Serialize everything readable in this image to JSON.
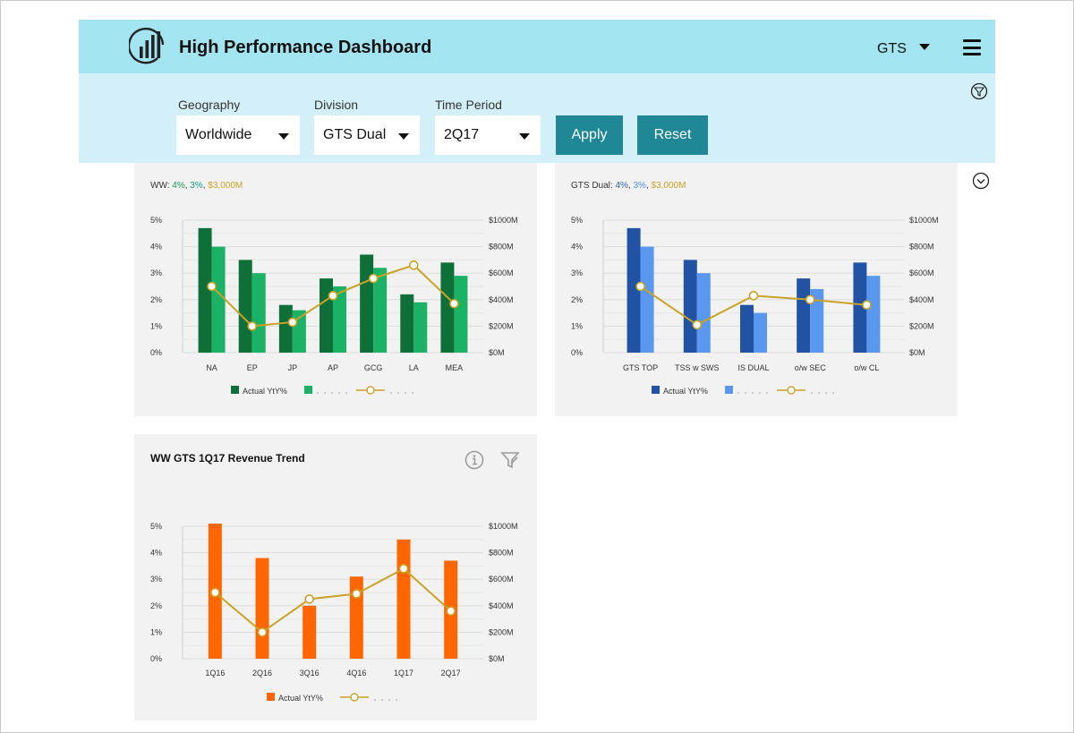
{
  "header": {
    "title": "High Performance Dashboard",
    "user_select": "GTS",
    "logo_icon": "bar-chart-logo-icon",
    "menu_icon": "hamburger-menu-icon"
  },
  "filters": {
    "geography": {
      "label": "Geography",
      "value": "Worldwide"
    },
    "division": {
      "label": "Division",
      "value": "GTS Dual"
    },
    "time_period": {
      "label": "Time Period",
      "value": "2Q17"
    },
    "apply_label": "Apply",
    "reset_label": "Reset",
    "filter_icon": "filter-icon"
  },
  "panels": {
    "ww": {
      "prefix": "WW: ",
      "v1": "4%",
      "sep1": ", ",
      "v2": "3%",
      "sep2": ", ",
      "v3": "$3,000M"
    },
    "dual": {
      "prefix": "GTS Dual: ",
      "v1": "4%",
      "sep1": ", ",
      "v2": "3%",
      "sep2": ", ",
      "v3": "$3,000M"
    },
    "trend": {
      "title": "WW GTS 1Q17 Revenue Trend"
    }
  },
  "colors": {
    "green_dark": "#0e7038",
    "green_light": "#1cb265",
    "blue_dark": "#2152a3",
    "blue_light": "#5a98f0",
    "orange": "#ff6600",
    "gold": "#c9a227"
  },
  "chart_data": [
    {
      "type": "bar",
      "categories": [
        "NA",
        "EP",
        "JP",
        "AP",
        "GCG",
        "LA",
        "MEA"
      ],
      "series": [
        {
          "name": "Actual YtY%",
          "kind": "bar",
          "axis": "left",
          "values": [
            4.7,
            3.5,
            1.8,
            2.8,
            3.7,
            2.2,
            3.4
          ]
        },
        {
          "kind": "bar",
          "axis": "left",
          "values": [
            4.0,
            3.0,
            1.6,
            2.5,
            3.2,
            1.9,
            2.9
          ]
        },
        {
          "kind": "line",
          "axis": "right",
          "values": [
            500,
            200,
            230,
            430,
            560,
            660,
            370
          ]
        }
      ],
      "yticks_left": [
        "5%",
        "4%",
        "3%",
        "2%",
        "1%",
        "0%"
      ],
      "yticks_right": [
        "$1000M",
        "$800M",
        "$600M",
        "$400M",
        "$200M",
        "$0M"
      ],
      "ylim_left": [
        0,
        5
      ],
      "ylim_right": [
        0,
        1000
      ],
      "legend": {
        "placement": "bottom",
        "entries": [
          "Actual YtY%"
        ]
      }
    },
    {
      "type": "bar",
      "categories": [
        "GTS TOP",
        "TSS w SWS",
        "IS DUAL",
        "o/w SEC",
        "o/w CL"
      ],
      "series": [
        {
          "name": "Actual YtY%",
          "kind": "bar",
          "axis": "left",
          "values": [
            4.7,
            3.5,
            1.8,
            2.8,
            3.4
          ]
        },
        {
          "kind": "bar",
          "axis": "left",
          "values": [
            4.0,
            3.0,
            1.5,
            2.4,
            2.9
          ]
        },
        {
          "kind": "line",
          "axis": "right",
          "values": [
            500,
            210,
            430,
            400,
            360
          ]
        }
      ],
      "yticks_left": [
        "5%",
        "4%",
        "3%",
        "2%",
        "1%",
        "0%"
      ],
      "yticks_right": [
        "$1000M",
        "$800M",
        "$600M",
        "$400M",
        "$200M",
        "$0M"
      ],
      "ylim_left": [
        0,
        5
      ],
      "ylim_right": [
        0,
        1000
      ],
      "legend": {
        "placement": "bottom",
        "entries": [
          "Actual YtY%"
        ]
      }
    },
    {
      "type": "bar",
      "title": "WW GTS 1Q17 Revenue Trend",
      "categories": [
        "1Q16",
        "2Q16",
        "3Q16",
        "4Q16",
        "1Q17",
        "2Q17"
      ],
      "series": [
        {
          "name": "Actual YtY%",
          "kind": "bar",
          "axis": "left",
          "values": [
            5.1,
            3.8,
            2.0,
            3.1,
            4.5,
            3.7
          ]
        },
        {
          "kind": "line",
          "axis": "right",
          "values": [
            500,
            200,
            450,
            490,
            680,
            360
          ]
        }
      ],
      "yticks_left": [
        "5%",
        "4%",
        "3%",
        "2%",
        "1%",
        "0%"
      ],
      "yticks_right": [
        "$1000M",
        "$800M",
        "$600M",
        "$400M",
        "$200M",
        "$0M"
      ],
      "ylim_left": [
        0,
        5
      ],
      "ylim_right": [
        0,
        1000
      ],
      "legend": {
        "placement": "bottom",
        "entries": [
          "Actual YtY%"
        ]
      }
    }
  ]
}
